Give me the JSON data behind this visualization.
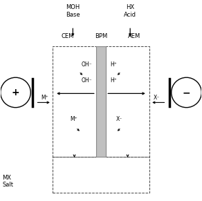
{
  "bg_color": "#ffffff",
  "text_color": "#000000",
  "labels": {
    "MOH_Base": "MOH\nBase",
    "HX_Acid": "HX\nAcid",
    "CEM": "CEM",
    "BPM": "BPM",
    "AEM": "AEM",
    "MX_Salt": "MX\nSalt",
    "OH1": "OH⁻",
    "OH2": "OH⁻",
    "H1": "H⁺",
    "H2": "H⁺",
    "Mp1": "M⁺",
    "Mp2": "M⁺",
    "Xm1": "X⁻",
    "Xm2": "X⁻"
  },
  "figsize": [
    2.92,
    2.91
  ],
  "dpi": 100
}
